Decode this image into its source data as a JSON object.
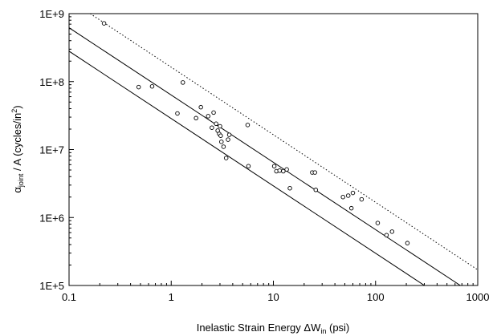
{
  "chart_data": {
    "type": "scatter",
    "title": "",
    "xlabel": {
      "prefix": "Inelastic Strain Energy ΔW",
      "sub": "in",
      "suffix": " (psi)"
    },
    "ylabel": {
      "alpha": "α",
      "sub": "joint",
      "mid": " / A (cycles/in",
      "sup": "2",
      "end": ")"
    },
    "x_scale": "log",
    "y_scale": "log",
    "xlim": [
      0.1,
      1000
    ],
    "ylim": [
      100000,
      1000000000
    ],
    "x_ticks": [
      {
        "value": 0.1,
        "label": "0.1"
      },
      {
        "value": 1,
        "label": "1"
      },
      {
        "value": 10,
        "label": "10"
      },
      {
        "value": 100,
        "label": "100"
      },
      {
        "value": 1000,
        "label": "1000"
      }
    ],
    "y_ticks": [
      {
        "value": 100000,
        "label": "1E+5"
      },
      {
        "value": 1000000,
        "label": "1E+6"
      },
      {
        "value": 10000000,
        "label": "1E+7"
      },
      {
        "value": 100000000,
        "label": "1E+8"
      },
      {
        "value": 1000000000,
        "label": "1E+9"
      }
    ],
    "grid": false,
    "legend": "none",
    "points": [
      [
        0.22,
        720000000
      ],
      [
        0.48,
        83000000
      ],
      [
        0.65,
        85000000
      ],
      [
        1.15,
        34000000
      ],
      [
        1.3,
        97000000
      ],
      [
        1.75,
        29000000
      ],
      [
        1.95,
        42000000
      ],
      [
        2.3,
        31000000
      ],
      [
        2.5,
        21000000
      ],
      [
        2.6,
        35000000
      ],
      [
        2.75,
        24000000
      ],
      [
        2.85,
        19000000
      ],
      [
        2.95,
        17000000
      ],
      [
        3.0,
        22000000
      ],
      [
        3.05,
        16000000
      ],
      [
        3.1,
        13000000
      ],
      [
        3.25,
        11000000
      ],
      [
        3.45,
        7500000
      ],
      [
        3.6,
        14000000
      ],
      [
        3.7,
        16500000
      ],
      [
        5.6,
        23000000
      ],
      [
        5.7,
        5700000
      ],
      [
        10.2,
        5700000
      ],
      [
        10.7,
        4800000
      ],
      [
        11.5,
        4900000
      ],
      [
        12.5,
        4800000
      ],
      [
        13.5,
        5100000
      ],
      [
        14.5,
        2700000
      ],
      [
        24.0,
        4600000
      ],
      [
        25.5,
        4600000
      ],
      [
        26.0,
        2550000
      ],
      [
        48.0,
        2000000
      ],
      [
        54.0,
        2100000
      ],
      [
        58.0,
        1370000
      ],
      [
        60.0,
        2300000
      ],
      [
        73.0,
        1850000
      ],
      [
        105.0,
        830000
      ],
      [
        128.0,
        550000
      ],
      [
        145.0,
        620000
      ],
      [
        205.0,
        420000
      ]
    ],
    "lines": [
      {
        "style": "solid",
        "points": [
          [
            0.1,
            620000000
          ],
          [
            676,
            100000
          ]
        ]
      },
      {
        "style": "solid",
        "points": [
          [
            0.1,
            280000000
          ],
          [
            301,
            100000
          ]
        ]
      },
      {
        "style": "dotted",
        "points": [
          [
            0.161,
            1000000000
          ],
          [
            1000,
            170000
          ]
        ]
      }
    ]
  }
}
